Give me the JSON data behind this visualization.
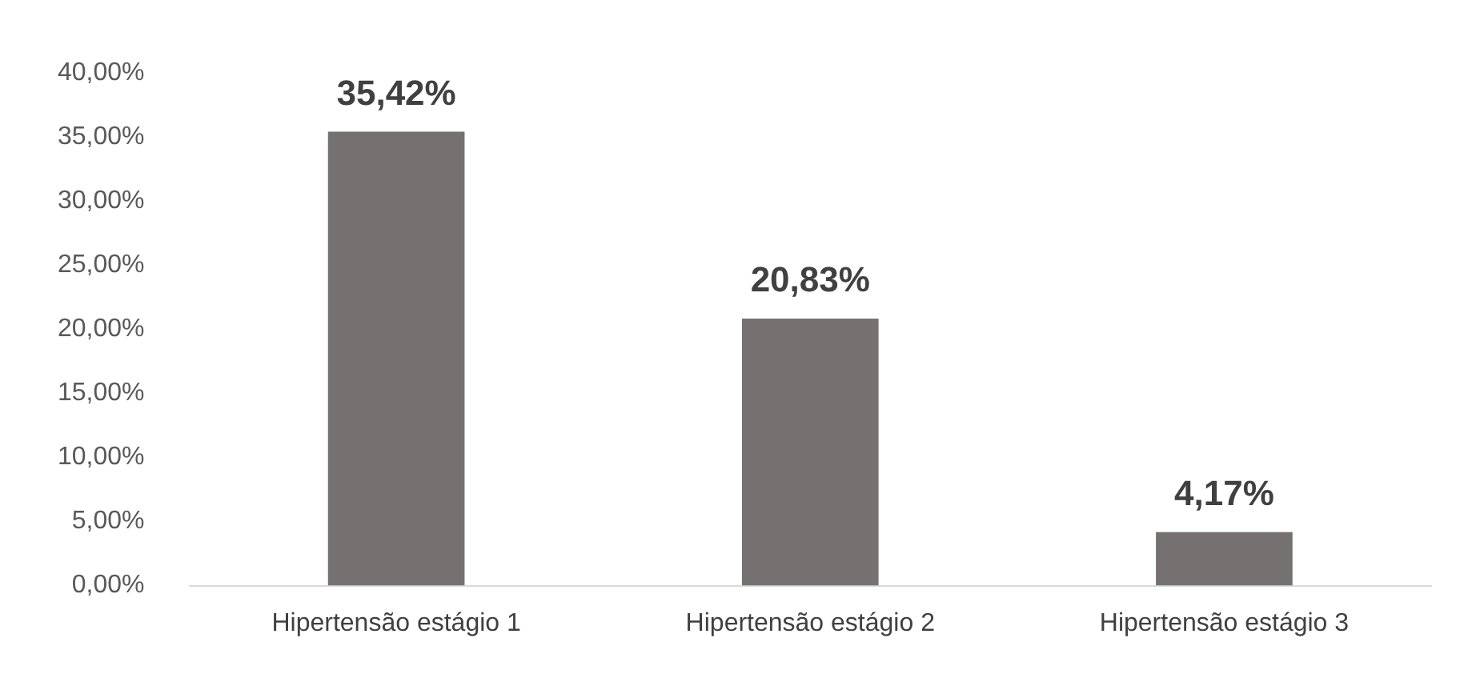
{
  "chart_data": {
    "type": "bar",
    "categories": [
      "Hipertensão estágio 1",
      "Hipertensão estágio 2",
      "Hipertensão estágio 3"
    ],
    "values": [
      35.42,
      20.83,
      4.17
    ],
    "value_labels": [
      "35,42%",
      "20,83%",
      "4,17%"
    ],
    "color": "#767171",
    "ylim": [
      0,
      40
    ],
    "yticks": [
      {
        "value": 0,
        "label": "0,00%"
      },
      {
        "value": 5,
        "label": "5,00%"
      },
      {
        "value": 10,
        "label": "10,00%"
      },
      {
        "value": 15,
        "label": "15,00%"
      },
      {
        "value": 20,
        "label": "20,00%"
      },
      {
        "value": 25,
        "label": "25,00%"
      },
      {
        "value": 30,
        "label": "30,00%"
      },
      {
        "value": 35,
        "label": "35,00%"
      },
      {
        "value": 40,
        "label": "40,00%"
      }
    ],
    "grid": false,
    "legend": false
  }
}
